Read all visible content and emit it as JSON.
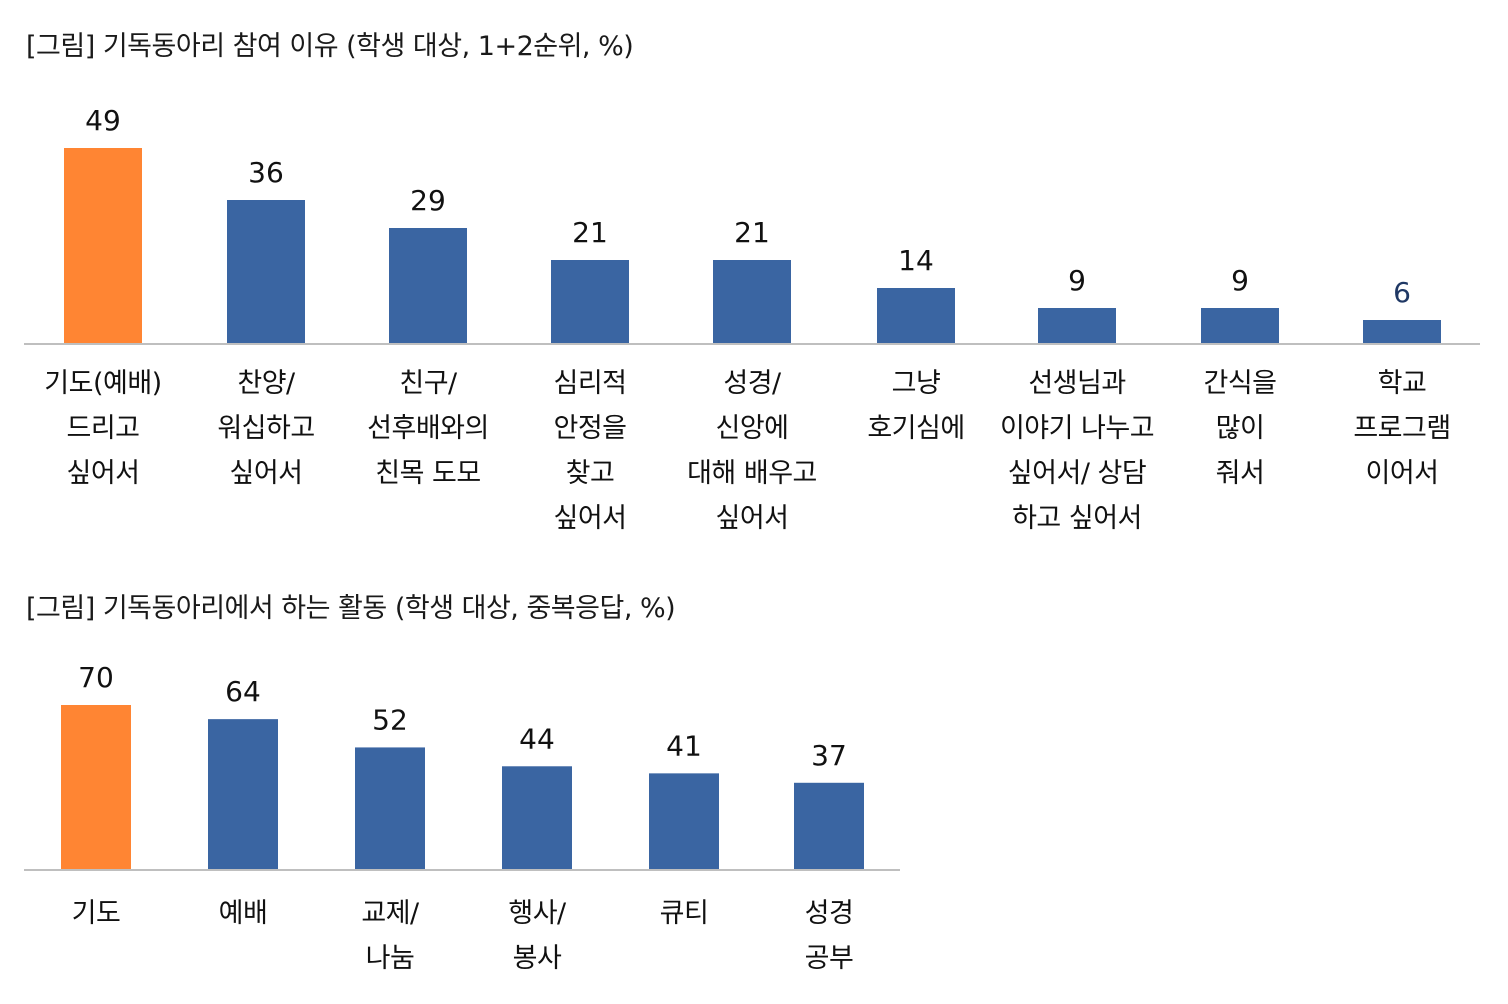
{
  "chart_data": [
    {
      "type": "bar",
      "title": "[그림] 기독동아리 참여 이유 (학생 대상, 1+2순위, %)",
      "categories": [
        [
          "기도(예배)",
          "드리고",
          "싶어서"
        ],
        [
          "찬양/",
          "워십하고",
          "싶어서"
        ],
        [
          "친구/",
          "선후배와의",
          "친목 도모"
        ],
        [
          "심리적",
          "안정을",
          "찾고",
          "싶어서"
        ],
        [
          "성경/",
          "신앙에",
          "대해 배우고",
          "싶어서"
        ],
        [
          "그냥",
          "호기심에"
        ],
        [
          "선생님과",
          "이야기 나누고",
          "싶어서/ 상담",
          "하고 싶어서"
        ],
        [
          "간식을",
          "많이",
          "줘서"
        ],
        [
          "학교",
          "프로그램",
          "이어서"
        ]
      ],
      "values": [
        49,
        36,
        29,
        21,
        21,
        14,
        9,
        9,
        6
      ],
      "ylim": [
        0,
        49
      ],
      "grid": false,
      "legend": "none",
      "colors": {
        "highlight": "#FF8533",
        "bar": "#3A65A2",
        "axis": "#BFBFBF",
        "last_value_label": "#1F3864"
      },
      "highlight_index": 0
    },
    {
      "type": "bar",
      "title": "[그림] 기독동아리에서 하는 활동 (학생 대상, 중복응답, %)",
      "categories": [
        [
          "기도"
        ],
        [
          "예배"
        ],
        [
          "교제/",
          "나눔"
        ],
        [
          "행사/",
          "봉사"
        ],
        [
          "큐티"
        ],
        [
          "성경",
          "공부"
        ]
      ],
      "values": [
        70,
        64,
        52,
        44,
        41,
        37
      ],
      "ylim": [
        0,
        70
      ],
      "grid": false,
      "legend": "none",
      "colors": {
        "highlight": "#FF8533",
        "bar": "#3A65A2",
        "axis": "#BFBFBF"
      },
      "highlight_index": 0
    }
  ]
}
